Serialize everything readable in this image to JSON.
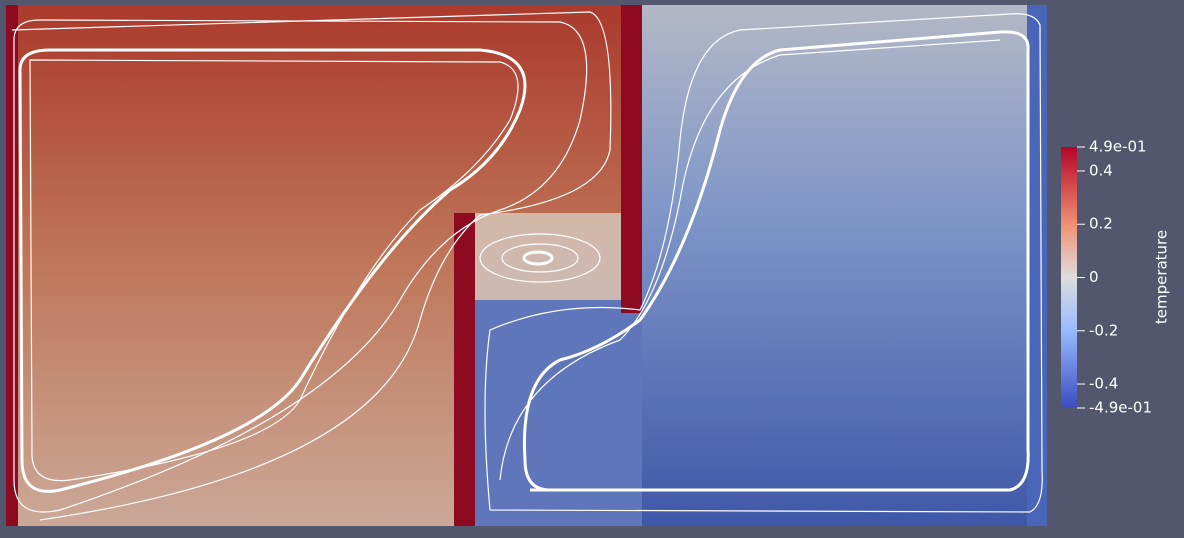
{
  "colorbar": {
    "title": "temperature",
    "range": [
      -0.49,
      0.49
    ],
    "ticks": [
      {
        "value": 0.49,
        "label": "4.9e-01"
      },
      0.4,
      0.2,
      0,
      -0.2,
      -0.4,
      {
        "value": -0.49,
        "label": "-4.9e-01"
      }
    ]
  }
}
